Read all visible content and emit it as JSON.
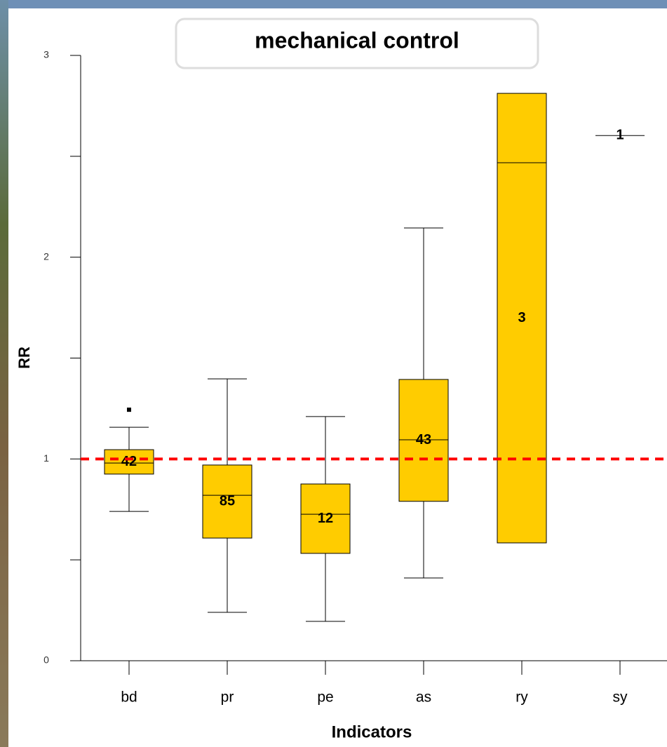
{
  "chart_data": {
    "type": "box",
    "title": "mechanical control",
    "y_label": "RR",
    "x_label": "Indicators",
    "categories": [
      "bd",
      "pr",
      "pe",
      "as",
      "ry",
      "sy"
    ],
    "boxes": [
      {
        "whisker_low": 0.74,
        "q1": 0.925,
        "median": 0.98,
        "q3": 1.046,
        "whisker_high": 1.157,
        "outliers": [
          1.244
        ],
        "n": 42
      },
      {
        "whisker_low": 0.24,
        "q1": 0.608,
        "median": 0.82,
        "q3": 0.97,
        "whisker_high": 1.397,
        "outliers": [],
        "n": 85
      },
      {
        "whisker_low": 0.195,
        "q1": 0.532,
        "median": 0.726,
        "q3": 0.876,
        "whisker_high": 1.21,
        "outliers": [],
        "n": 12
      },
      {
        "whisker_low": 0.41,
        "q1": 0.79,
        "median": 1.095,
        "q3": 1.394,
        "whisker_high": 2.145,
        "outliers": [],
        "n": 43
      },
      {
        "whisker_low": null,
        "q1": 0.584,
        "median": 2.468,
        "q3": 2.812,
        "whisker_high": null,
        "outliers": [],
        "n": 3
      },
      {
        "whisker_low": null,
        "q1": null,
        "median": 2.603,
        "q3": null,
        "whisker_high": null,
        "outliers": [],
        "n": 1
      }
    ],
    "color": "#ffcc00",
    "ylim": [
      0,
      3
    ],
    "yticks": [
      0,
      1,
      2,
      3
    ],
    "minor_yticks": [
      0.5,
      1.5,
      2.5
    ],
    "reference_line": 1,
    "reference_color": "#ff0000"
  }
}
